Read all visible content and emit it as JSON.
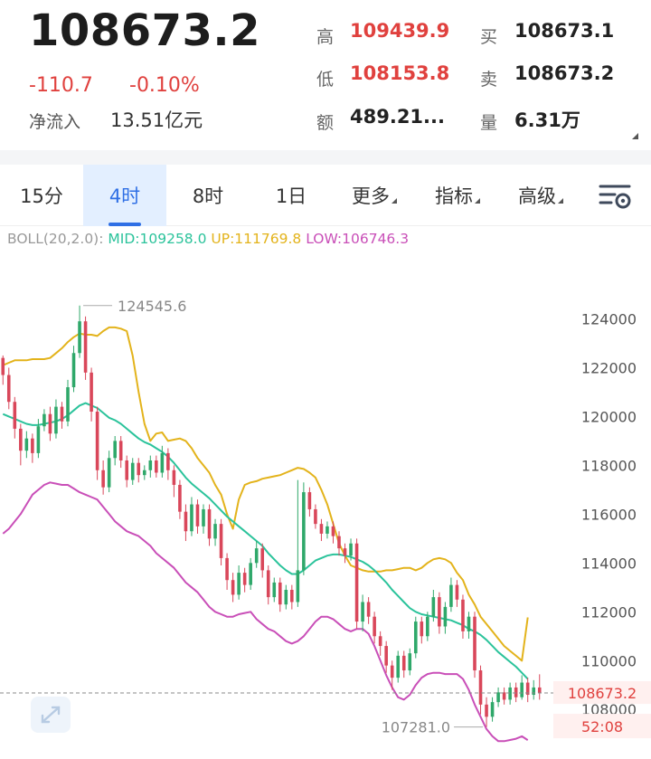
{
  "quote": {
    "price": "108673.2",
    "change": "-110.7",
    "change_pct": "-0.10%",
    "netflow_label": "净流入",
    "netflow_value": "13.51亿元",
    "high_label": "高",
    "high_value": "109439.9",
    "low_label": "低",
    "low_value": "108153.8",
    "amount_label": "额",
    "amount_value": "489.21...",
    "bid_label": "买",
    "bid_value": "108673.1",
    "ask_label": "卖",
    "ask_value": "108673.2",
    "volume_label": "量",
    "volume_value": "6.31万"
  },
  "tabs": [
    {
      "label": "15分",
      "active": false
    },
    {
      "label": "4时",
      "active": true
    },
    {
      "label": "8时",
      "active": false
    },
    {
      "label": "1日",
      "active": false
    },
    {
      "label": "更多",
      "active": false,
      "dropdown": true
    },
    {
      "label": "指标",
      "active": false,
      "dropdown": true
    },
    {
      "label": "高级",
      "active": false,
      "dropdown": true
    }
  ],
  "icons": {
    "settings": "chart-settings-icon",
    "expand": "expand-icon"
  },
  "colors": {
    "up": "#2fa86a",
    "down": "#d9475a",
    "mid": "#2bc39b",
    "upper": "#e3b31b",
    "lower": "#c94fb8",
    "accent": "#2f6fe5",
    "price_red": "#e0413e"
  },
  "chart_data": {
    "type": "candlestick",
    "indicator": {
      "title": "BOLL(20,2.0):",
      "mid": "MID:109258.0",
      "up": "UP:111769.8",
      "low": "LOW:106746.3"
    },
    "y_ticks": [
      108000,
      110000,
      112000,
      114000,
      116000,
      118000,
      120000,
      122000,
      124000
    ],
    "ylim": [
      106600,
      125500
    ],
    "current_price": 108673.2,
    "current_price_label": "108673.2",
    "countdown": "52:08",
    "max_label": "124545.6",
    "max_value": 124545.6,
    "min_label": "107281.0",
    "min_value": 107281.0,
    "candles": [
      [
        122400,
        121700,
        122500,
        121300
      ],
      [
        121700,
        120600,
        122000,
        120300
      ],
      [
        120600,
        119500,
        120800,
        119100
      ],
      [
        119500,
        118600,
        119700,
        118000
      ],
      [
        118600,
        119100,
        119400,
        118300
      ],
      [
        119100,
        118500,
        119300,
        118100
      ],
      [
        118500,
        119600,
        119900,
        118300
      ],
      [
        119600,
        120100,
        120300,
        119400
      ],
      [
        120100,
        119300,
        120400,
        119000
      ],
      [
        119300,
        120400,
        120700,
        119100
      ],
      [
        120400,
        119800,
        120600,
        119500
      ],
      [
        119800,
        121200,
        121500,
        119600
      ],
      [
        121200,
        122600,
        122900,
        121000
      ],
      [
        122600,
        123900,
        124545.6,
        122400
      ],
      [
        123900,
        121800,
        124100,
        121500
      ],
      [
        121800,
        120200,
        122000,
        119800
      ],
      [
        120200,
        117800,
        120400,
        117400
      ],
      [
        117800,
        117100,
        118200,
        116800
      ],
      [
        117100,
        118300,
        118600,
        116900
      ],
      [
        118300,
        119000,
        119200,
        118000
      ],
      [
        119000,
        118200,
        119200,
        117900
      ],
      [
        118200,
        117400,
        118400,
        117100
      ],
      [
        117400,
        118100,
        118300,
        117200
      ],
      [
        118100,
        117600,
        118300,
        117300
      ],
      [
        117600,
        117800,
        118000,
        117400
      ],
      [
        117800,
        118200,
        118400,
        117500
      ],
      [
        118200,
        117700,
        118400,
        117500
      ],
      [
        117700,
        118500,
        118800,
        117500
      ],
      [
        118500,
        117800,
        118700,
        117400
      ],
      [
        117800,
        117200,
        118000,
        116700
      ],
      [
        117200,
        116100,
        117400,
        115800
      ],
      [
        116100,
        115300,
        116400,
        114900
      ],
      [
        115300,
        116400,
        116700,
        115100
      ],
      [
        116400,
        115500,
        116600,
        115200
      ],
      [
        115500,
        116200,
        116400,
        115200
      ],
      [
        116200,
        115000,
        116400,
        114700
      ],
      [
        115000,
        115600,
        115800,
        114700
      ],
      [
        115600,
        114200,
        115800,
        113900
      ],
      [
        114200,
        113300,
        114400,
        112900
      ],
      [
        113300,
        112700,
        113600,
        112400
      ],
      [
        112700,
        113600,
        113900,
        112500
      ],
      [
        113600,
        113100,
        113800,
        112800
      ],
      [
        113100,
        114000,
        114200,
        112900
      ],
      [
        114000,
        114600,
        114900,
        113800
      ],
      [
        114600,
        113700,
        114800,
        113400
      ],
      [
        113700,
        112600,
        113900,
        112300
      ],
      [
        112600,
        113200,
        113400,
        112400
      ],
      [
        113200,
        112300,
        113400,
        112000
      ],
      [
        112300,
        112900,
        113100,
        112100
      ],
      [
        112900,
        112400,
        113100,
        112100
      ],
      [
        112400,
        113700,
        117400,
        112200
      ],
      [
        113700,
        116900,
        117300,
        113500
      ],
      [
        116900,
        116200,
        117100,
        115900
      ],
      [
        116200,
        115600,
        116400,
        115400
      ],
      [
        115600,
        115200,
        115800,
        114900
      ],
      [
        115200,
        115500,
        115700,
        115000
      ],
      [
        115500,
        115100,
        115700,
        114800
      ],
      [
        115100,
        114600,
        115300,
        114300
      ],
      [
        114600,
        114300,
        114800,
        114000
      ],
      [
        114300,
        114800,
        115000,
        114100
      ],
      [
        114800,
        111600,
        115000,
        111300
      ],
      [
        111600,
        112400,
        112700,
        111200
      ],
      [
        112400,
        111800,
        112600,
        111500
      ],
      [
        111800,
        111000,
        112000,
        110700
      ],
      [
        111000,
        110600,
        111200,
        110200
      ],
      [
        110600,
        109800,
        110800,
        109500
      ],
      [
        109800,
        109300,
        110000,
        108800
      ],
      [
        109300,
        110200,
        110400,
        109100
      ],
      [
        110200,
        109600,
        110400,
        109300
      ],
      [
        109600,
        110300,
        110500,
        109400
      ],
      [
        110300,
        111600,
        111800,
        110100
      ],
      [
        111600,
        111000,
        111800,
        110700
      ],
      [
        111000,
        111800,
        112000,
        110800
      ],
      [
        111800,
        112600,
        112900,
        111600
      ],
      [
        112600,
        111400,
        112800,
        111100
      ],
      [
        111400,
        112200,
        112400,
        111100
      ],
      [
        112200,
        113100,
        113400,
        112000
      ],
      [
        113100,
        112500,
        113300,
        112200
      ],
      [
        112500,
        111200,
        112700,
        110900
      ],
      [
        111200,
        111800,
        112000,
        110900
      ],
      [
        111800,
        109600,
        112000,
        109300
      ],
      [
        109600,
        108200,
        109800,
        107800
      ],
      [
        108200,
        107700,
        108500,
        107281.0
      ],
      [
        107700,
        108300,
        108500,
        107500
      ],
      [
        108300,
        108700,
        108900,
        108100
      ],
      [
        108700,
        108400,
        108900,
        108200
      ],
      [
        108400,
        108900,
        109100,
        108200
      ],
      [
        108900,
        108500,
        109100,
        108300
      ],
      [
        108500,
        109100,
        109400,
        108400
      ],
      [
        109100,
        108600,
        109300,
        108300
      ],
      [
        108600,
        108900,
        109200,
        108400
      ],
      [
        108900,
        108673.2,
        109439.9,
        108400
      ]
    ],
    "mid": [
      120100,
      120000,
      119900,
      119800,
      119700,
      119650,
      119650,
      119700,
      119750,
      119800,
      119900,
      120050,
      120250,
      120450,
      120550,
      120450,
      120350,
      120150,
      119950,
      119850,
      119700,
      119500,
      119300,
      119100,
      118950,
      118850,
      118700,
      118550,
      118350,
      118100,
      117800,
      117500,
      117250,
      117050,
      116850,
      116650,
      116400,
      116150,
      115900,
      115700,
      115500,
      115300,
      115100,
      114900,
      114700,
      114400,
      114150,
      113900,
      113700,
      113550,
      113550,
      113700,
      113900,
      114100,
      114200,
      114300,
      114350,
      114350,
      114300,
      114250,
      114150,
      114050,
      113900,
      113700,
      113450,
      113200,
      112900,
      112650,
      112400,
      112150,
      112000,
      111900,
      111850,
      111800,
      111750,
      111700,
      111650,
      111550,
      111450,
      111300,
      111200,
      111050,
      110850,
      110600,
      110350,
      110150,
      109950,
      109750,
      109500,
      109250
    ],
    "upper": [
      122100,
      122200,
      122300,
      122300,
      122300,
      122350,
      122350,
      122350,
      122400,
      122600,
      122800,
      123050,
      123250,
      123400,
      123350,
      123350,
      123300,
      123500,
      123650,
      123650,
      123600,
      123500,
      122500,
      121000,
      119700,
      119000,
      119300,
      119350,
      119000,
      119050,
      119100,
      119000,
      118700,
      118300,
      118000,
      117700,
      117200,
      116800,
      116000,
      115400,
      116600,
      117200,
      117300,
      117350,
      117450,
      117500,
      117550,
      117600,
      117700,
      117800,
      117900,
      117850,
      117700,
      117500,
      117000,
      116400,
      115600,
      114800,
      114300,
      113900,
      113800,
      113700,
      113650,
      113650,
      113650,
      113700,
      113700,
      113750,
      113800,
      113800,
      113700,
      113800,
      114000,
      114150,
      114200,
      114150,
      114000,
      113600,
      113300,
      112700,
      112300,
      111800,
      111500,
      111200,
      110900,
      110600,
      110400,
      110200,
      110000,
      111769.8
    ],
    "lower": [
      115200,
      115400,
      115700,
      116000,
      116400,
      116800,
      117000,
      117200,
      117300,
      117250,
      117200,
      117200,
      117050,
      116900,
      116800,
      116700,
      116600,
      116300,
      116000,
      115700,
      115500,
      115300,
      115200,
      115100,
      114900,
      114700,
      114400,
      114200,
      114000,
      113800,
      113500,
      113200,
      113000,
      112800,
      112500,
      112200,
      112000,
      111900,
      111800,
      111800,
      111900,
      111950,
      112000,
      111700,
      111500,
      111300,
      111200,
      111000,
      110800,
      110700,
      110800,
      111000,
      111300,
      111600,
      111800,
      111800,
      111700,
      111500,
      111300,
      111200,
      111300,
      111300,
      111100,
      110600,
      110000,
      109400,
      108900,
      108500,
      108400,
      108600,
      109000,
      109300,
      109450,
      109500,
      109500,
      109450,
      109450,
      109450,
      109250,
      108800,
      108200,
      107700,
      107200,
      106900,
      106700,
      106700,
      106750,
      106800,
      106900,
      106746.3
    ]
  }
}
